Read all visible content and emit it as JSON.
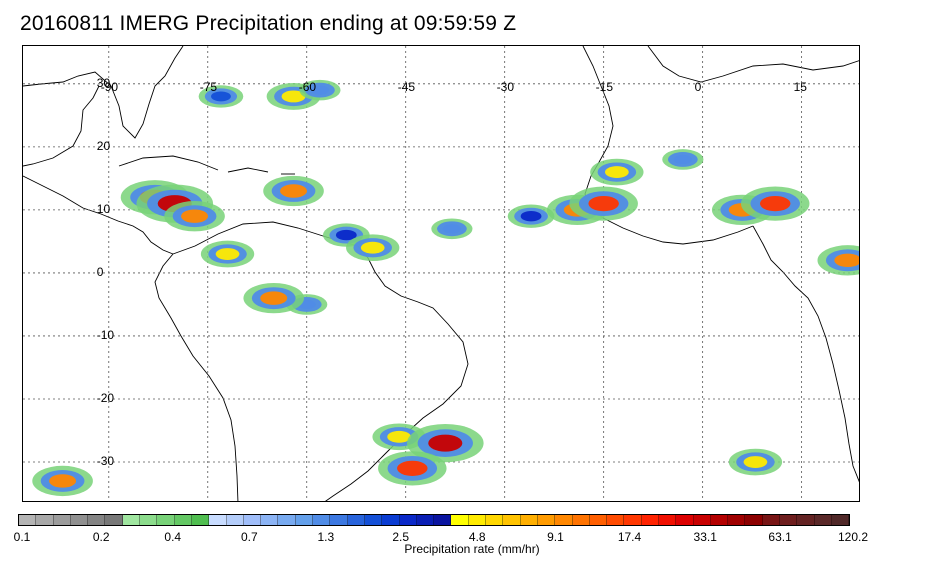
{
  "title": "20160811 IMERG Precipitation ending at 09:59:59 Z",
  "map": {
    "lon_range": [
      -103,
      24
    ],
    "lat_range": [
      -36.5,
      36
    ],
    "lon_ticks": [
      {
        "value": -90,
        "label": "-90"
      },
      {
        "value": -75,
        "label": "-75"
      },
      {
        "value": -60,
        "label": "-60"
      },
      {
        "value": -45,
        "label": "-45"
      },
      {
        "value": -30,
        "label": "-30"
      },
      {
        "value": -15,
        "label": "-15"
      },
      {
        "value": 0,
        "label": "0"
      },
      {
        "value": 15,
        "label": "15"
      }
    ],
    "lat_ticks": [
      {
        "value": 30,
        "label": "30"
      },
      {
        "value": 20,
        "label": "20"
      },
      {
        "value": 10,
        "label": "10"
      },
      {
        "value": 0,
        "label": "0"
      },
      {
        "value": -10,
        "label": "-10"
      },
      {
        "value": -20,
        "label": "-20"
      },
      {
        "value": -30,
        "label": "-30"
      }
    ],
    "precip_cells": [
      {
        "lon": -73,
        "lat": 28,
        "mm_hr": 2.0
      },
      {
        "lon": -62,
        "lat": 28,
        "mm_hr": 5.0
      },
      {
        "lon": -58,
        "lat": 29,
        "mm_hr": 1.3
      },
      {
        "lon": -83,
        "lat": 12,
        "mm_hr": 17.4
      },
      {
        "lon": -80,
        "lat": 11,
        "mm_hr": 33.1
      },
      {
        "lon": -77,
        "lat": 9,
        "mm_hr": 9.1
      },
      {
        "lon": -72,
        "lat": 3,
        "mm_hr": 4.8
      },
      {
        "lon": -62,
        "lat": 13,
        "mm_hr": 9.1
      },
      {
        "lon": -54,
        "lat": 6,
        "mm_hr": 2.5
      },
      {
        "lon": -50,
        "lat": 4,
        "mm_hr": 4.8
      },
      {
        "lon": -38,
        "lat": 7,
        "mm_hr": 1.3
      },
      {
        "lon": -26,
        "lat": 9,
        "mm_hr": 2.5
      },
      {
        "lon": -19,
        "lat": 10,
        "mm_hr": 9.1
      },
      {
        "lon": -15,
        "lat": 11,
        "mm_hr": 17.4
      },
      {
        "lon": -13,
        "lat": 16,
        "mm_hr": 4.8
      },
      {
        "lon": -3,
        "lat": 18,
        "mm_hr": 1.3
      },
      {
        "lon": 6,
        "lat": 10,
        "mm_hr": 9.1
      },
      {
        "lon": 11,
        "lat": 11,
        "mm_hr": 17.4
      },
      {
        "lon": 22,
        "lat": 2,
        "mm_hr": 9.1
      },
      {
        "lon": -46,
        "lat": -26,
        "mm_hr": 4.8
      },
      {
        "lon": -39,
        "lat": -27,
        "mm_hr": 33.1
      },
      {
        "lon": -44,
        "lat": -31,
        "mm_hr": 17.4
      },
      {
        "lon": -97,
        "lat": -33,
        "mm_hr": 9.1
      },
      {
        "lon": 8,
        "lat": -30,
        "mm_hr": 4.8
      },
      {
        "lon": -60,
        "lat": -5,
        "mm_hr": 1.3
      },
      {
        "lon": -65,
        "lat": -4,
        "mm_hr": 9.1
      }
    ]
  },
  "colorbar": {
    "colors": [
      "#b4b4b4",
      "#a8a8a8",
      "#9c9c9c",
      "#909090",
      "#848484",
      "#787878",
      "#a0e6a0",
      "#8cdc8c",
      "#78d278",
      "#64c864",
      "#50be50",
      "#c8dcff",
      "#b4cdfa",
      "#a0befa",
      "#8cb4f5",
      "#78aaf0",
      "#64a0eb",
      "#508ce6",
      "#3c78e1",
      "#2864dc",
      "#1450d7",
      "#0a3cd2",
      "#0a28c8",
      "#0a1eb4",
      "#0a14a0",
      "#ffff00",
      "#ffeb00",
      "#ffd700",
      "#ffc300",
      "#ffaf00",
      "#ff9b00",
      "#ff8700",
      "#ff7300",
      "#ff5f00",
      "#ff4b00",
      "#ff3700",
      "#ff2300",
      "#f00f00",
      "#dc0000",
      "#c80000",
      "#b40000",
      "#a00000",
      "#8c0000",
      "#781414",
      "#6e1e1e",
      "#642323",
      "#5a2828",
      "#502828"
    ],
    "labels": [
      {
        "value": "0.1",
        "pos": 0.0
      },
      {
        "value": "0.2",
        "pos": 0.1
      },
      {
        "value": "0.4",
        "pos": 0.186
      },
      {
        "value": "0.7",
        "pos": 0.278
      },
      {
        "value": "1.3",
        "pos": 0.37
      },
      {
        "value": "2.5",
        "pos": 0.46
      },
      {
        "value": "4.8",
        "pos": 0.552
      },
      {
        "value": "9.1",
        "pos": 0.646
      },
      {
        "value": "17.4",
        "pos": 0.735
      },
      {
        "value": "33.1",
        "pos": 0.826
      },
      {
        "value": "63.1",
        "pos": 0.916
      },
      {
        "value": "120.2",
        "pos": 1.0
      }
    ],
    "title": "Precipitation rate (mm/hr)"
  }
}
